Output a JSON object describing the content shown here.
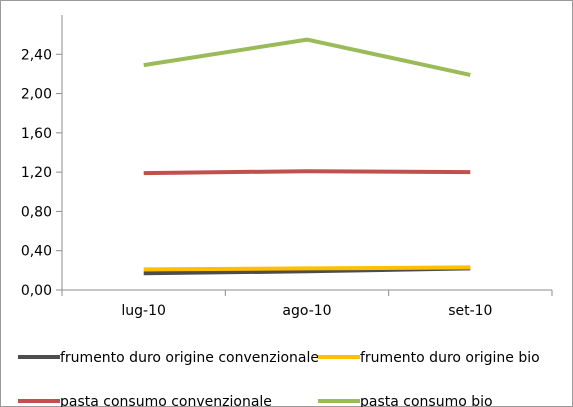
{
  "chart_data": {
    "type": "line",
    "categories": [
      "lug-10",
      "ago-10",
      "set-10"
    ],
    "ylim": [
      0,
      2.8
    ],
    "yticks": [
      "0,00",
      "0,40",
      "0,80",
      "1,20",
      "1,60",
      "2,00",
      "2,40"
    ],
    "grid": false,
    "legend_position": "bottom",
    "series": [
      {
        "name": "frumento duro origine convenzionale",
        "color": "#4d4d4d",
        "values": [
          0.17,
          0.19,
          0.22
        ]
      },
      {
        "name": "frumento duro origine bio",
        "color": "#ffc000",
        "values": [
          0.21,
          0.22,
          0.23
        ]
      },
      {
        "name": "pasta consumo convenzionale",
        "color": "#c0504d",
        "values": [
          1.19,
          1.21,
          1.2
        ]
      },
      {
        "name": "pasta consumo bio",
        "color": "#9bbb59",
        "values": [
          2.29,
          2.55,
          2.19
        ]
      }
    ]
  }
}
